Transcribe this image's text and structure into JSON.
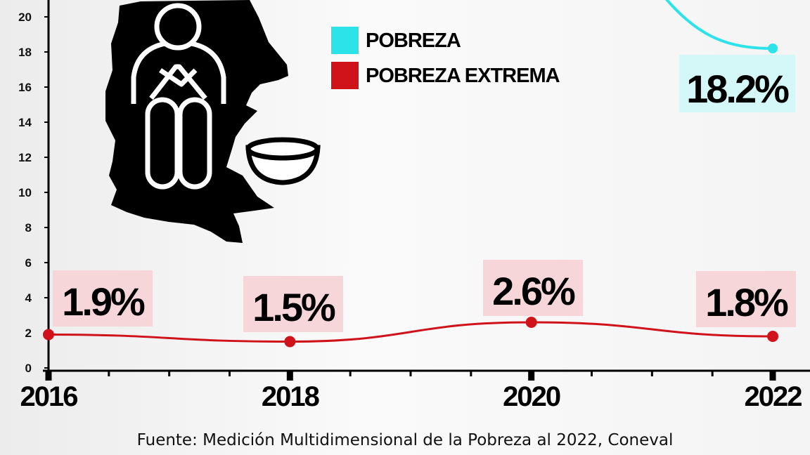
{
  "chart_data": {
    "type": "line",
    "title": "",
    "xlabel": "",
    "ylabel": "",
    "x": [
      2016,
      2018,
      2020,
      2022
    ],
    "ylim": [
      0,
      20
    ],
    "yticks": [
      0,
      2,
      4,
      6,
      8,
      10,
      12,
      14,
      16,
      18,
      20
    ],
    "grid": false,
    "legend_position": "top-center",
    "series": [
      {
        "name": "POBREZA",
        "color": "#2de3ea",
        "label_bg": "#d4f7f8",
        "points": [
          {
            "x": 2022,
            "y": 18.2,
            "label": "18.2%"
          }
        ]
      },
      {
        "name": "POBREZA EXTREMA",
        "color": "#d0121b",
        "label_bg": "#f6d6d8",
        "points": [
          {
            "x": 2016,
            "y": 1.9,
            "label": "1.9%"
          },
          {
            "x": 2018,
            "y": 1.5,
            "label": "1.5%"
          },
          {
            "x": 2020,
            "y": 2.6,
            "label": "2.6%"
          },
          {
            "x": 2022,
            "y": 1.8,
            "label": "1.8%"
          }
        ]
      }
    ],
    "source": "Fuente: Medición Multidimensional de la Pobreza al 2022, Coneval"
  },
  "illustration": {
    "icon": "person-begging-with-bowl-over-state-map-icon"
  }
}
